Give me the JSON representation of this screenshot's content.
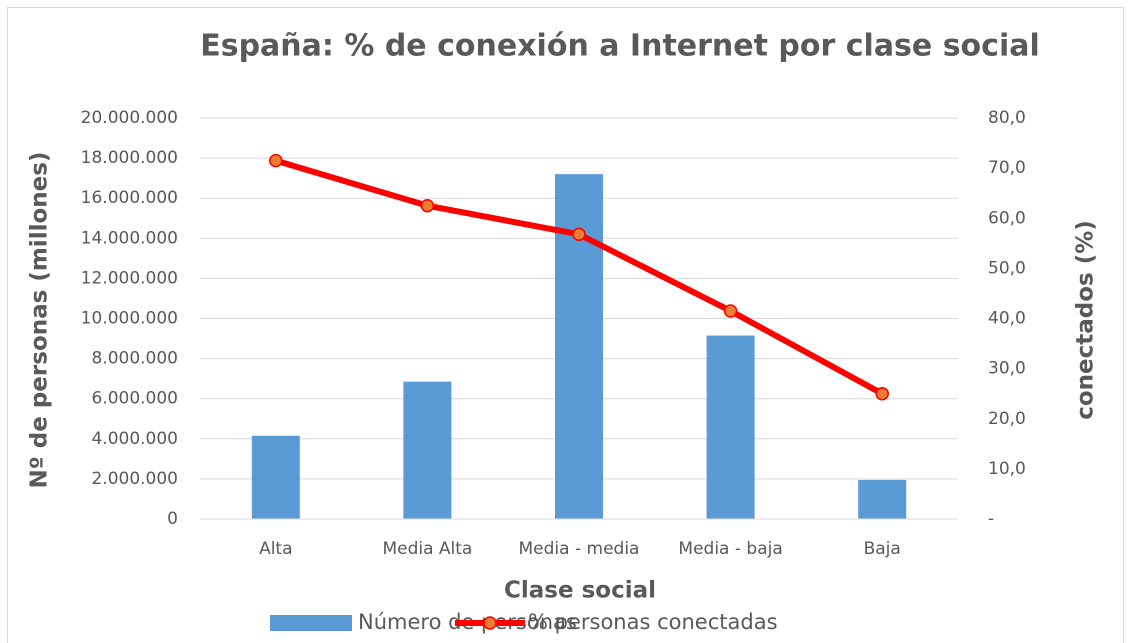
{
  "chart_data": {
    "type": "bar",
    "title": "España: % de conexión a Internet por clase social",
    "x_label": "Clase social",
    "y_label": "Nº de personas (millones)",
    "y2_label": "conectados (%)",
    "categories": [
      "Alta",
      "Media Alta",
      "Media - media",
      "Media - baja",
      "Baja"
    ],
    "series": [
      {
        "name": "Número de personas",
        "type": "bar",
        "color": "#5b9bd5",
        "values": [
          4150000,
          6850000,
          17200000,
          9150000,
          1950000
        ]
      },
      {
        "name": "% personas conectadas",
        "type": "line",
        "axis": "y2",
        "color": "#ff0000",
        "marker_color": "#ed7d31",
        "values": [
          71.5,
          62.5,
          56.8,
          41.5,
          25.0
        ]
      }
    ],
    "ylim": [
      0,
      20000000
    ],
    "yticks": [
      0,
      {
        "value": 2000000,
        "label": "2.000.000"
      },
      {
        "value": 4000000,
        "label": "4.000.000"
      },
      {
        "value": 6000000,
        "label": "6.000.000"
      },
      {
        "value": 8000000,
        "label": "8.000.000"
      },
      {
        "value": 10000000,
        "label": "10.000.000"
      },
      {
        "value": 12000000,
        "label": "12.000.000"
      },
      {
        "value": 14000000,
        "label": "14.000.000"
      },
      {
        "value": 16000000,
        "label": "16.000.000"
      },
      {
        "value": 18000000,
        "label": "18.000.000"
      },
      {
        "value": 20000000,
        "label": "20.000.000"
      }
    ],
    "y2lim": [
      0,
      80
    ],
    "y2ticks": [
      {
        "value": 0,
        "label": "-"
      },
      {
        "value": 10,
        "label": "10,0"
      },
      {
        "value": 20,
        "label": "20,0"
      },
      {
        "value": 30,
        "label": "30,0"
      },
      {
        "value": 40,
        "label": "40,0"
      },
      {
        "value": 50,
        "label": "50,0"
      },
      {
        "value": 60,
        "label": "60,0"
      },
      {
        "value": 70,
        "label": "70,0"
      },
      {
        "value": 80,
        "label": "80,0"
      }
    ],
    "grid": true,
    "legend": "bottom"
  }
}
